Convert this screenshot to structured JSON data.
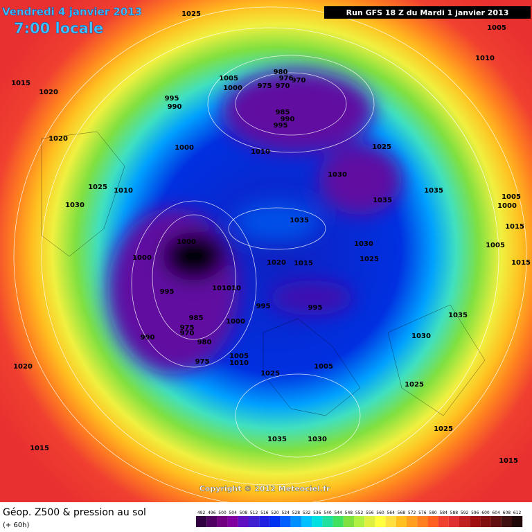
{
  "header": {
    "date": "Vendredi 4 janvier 2013",
    "time": "7:00 locale",
    "run": "Run GFS 18 Z du Mardi 1 janvier 2013"
  },
  "copyright": "Copyright © 2012 Meteociel.fr",
  "footer": {
    "title": "Géop. Z500 & pression au sol",
    "lead": "(+ 60h)"
  },
  "scale": [
    492,
    496,
    500,
    504,
    508,
    512,
    516,
    520,
    524,
    528,
    532,
    536,
    540,
    544,
    548,
    552,
    556,
    560,
    564,
    568,
    572,
    576,
    580,
    584,
    588,
    592,
    596,
    600,
    604,
    608,
    612
  ],
  "isobar_labels": [
    1025,
    1005,
    1010,
    1015,
    1020,
    1005,
    1000,
    975,
    970,
    980,
    976,
    970,
    995,
    990,
    985,
    990,
    995,
    1020,
    1000,
    1010,
    1025,
    1030,
    1025,
    1010,
    1035,
    1035,
    1030,
    1005,
    1000,
    1035,
    1015,
    1000,
    1005,
    1000,
    1030,
    1025,
    1020,
    1015,
    1015,
    995,
    1010,
    1010,
    995,
    995,
    985,
    975,
    970,
    1000,
    990,
    980,
    1035,
    1030,
    975,
    1005,
    1010,
    1005,
    1020,
    1025,
    1025,
    1035,
    1030,
    1025,
    1015,
    1015
  ]
}
